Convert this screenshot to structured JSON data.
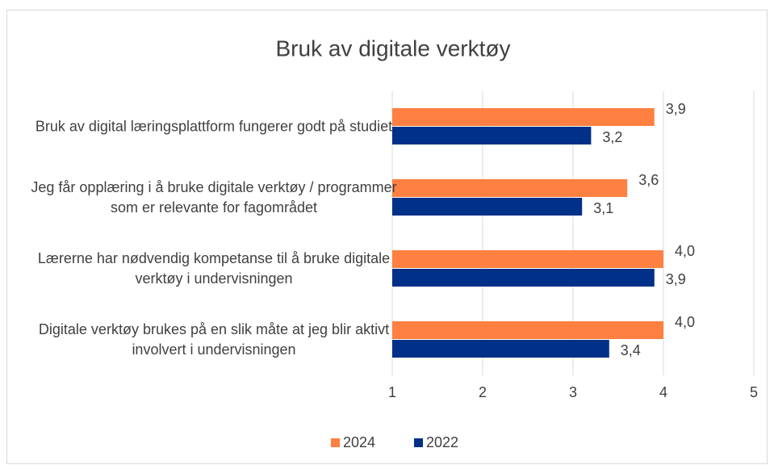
{
  "chart_data": {
    "type": "bar",
    "orientation": "horizontal",
    "title": "Bruk av digitale verktøy",
    "categories": [
      "Bruk av digital læringsplattform fungerer godt på studiet",
      "Jeg får opplæring i å bruke digitale verktøy / programmer som er relevante for fagområdet",
      "Lærerne har nødvendig kompetanse til å bruke digitale verktøy i undervisningen",
      "Digitale verktøy brukes på en slik måte at jeg blir aktivt involvert i undervisningen"
    ],
    "series": [
      {
        "name": "2024",
        "color": "#ff8040",
        "values": [
          3.9,
          3.6,
          4.0,
          4.0
        ],
        "value_labels": [
          "3,9",
          "3,6",
          "4,0",
          "4,0"
        ]
      },
      {
        "name": "2022",
        "color": "#003087",
        "values": [
          3.2,
          3.1,
          3.9,
          3.4
        ],
        "value_labels": [
          "3,2",
          "3,1",
          "3,9",
          "3,4"
        ]
      }
    ],
    "xlim": [
      1,
      5
    ],
    "xticks": [
      1,
      2,
      3,
      4,
      5
    ],
    "grid": true,
    "legend": "bottom"
  }
}
